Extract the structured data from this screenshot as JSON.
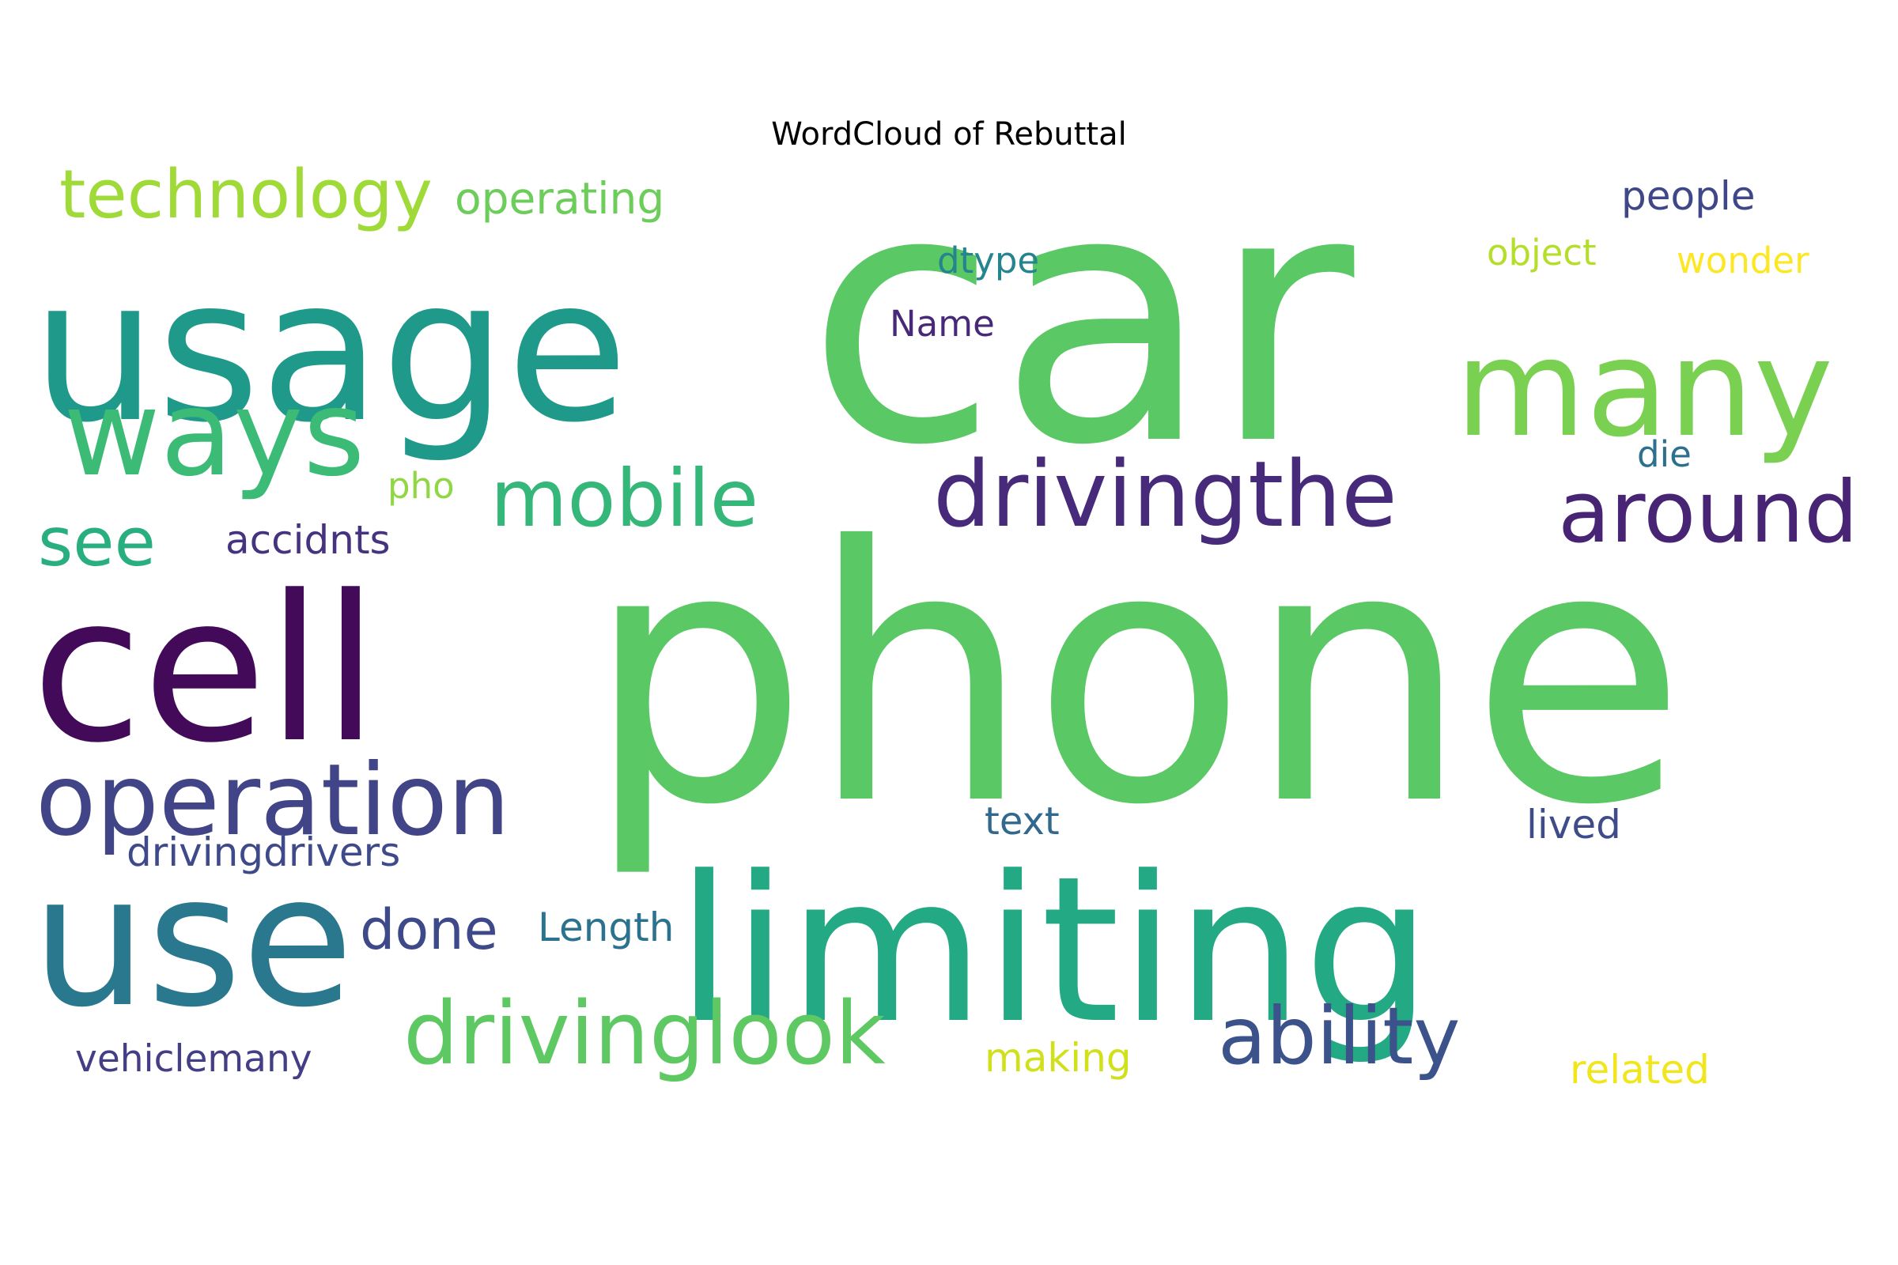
{
  "chart_data": {
    "type": "wordcloud",
    "title": "WordCloud of Rebuttal",
    "colormap": "viridis",
    "background": "#ffffff",
    "words": [
      {
        "text": "car",
        "color": "#5ac864"
      },
      {
        "text": "phone",
        "color": "#5ac864"
      },
      {
        "text": "usage",
        "color": "#1f9a8a"
      },
      {
        "text": "limiting",
        "color": "#23a983"
      },
      {
        "text": "cell",
        "color": "#440a5a"
      },
      {
        "text": "many",
        "color": "#7ad151"
      },
      {
        "text": "use",
        "color": "#2a788e"
      },
      {
        "text": "ways",
        "color": "#3bbb75"
      },
      {
        "text": "operation",
        "color": "#414487"
      },
      {
        "text": "drivingthe",
        "color": "#472a7a"
      },
      {
        "text": "driving look",
        "color": "#5ec962"
      },
      {
        "text": "ability",
        "color": "#3b528b"
      },
      {
        "text": "around",
        "color": "#482475"
      },
      {
        "text": "mobile",
        "color": "#35b779"
      },
      {
        "text": "technology",
        "color": "#a0da39"
      },
      {
        "text": "see",
        "color": "#29af7f"
      },
      {
        "text": "done",
        "color": "#3e4989"
      },
      {
        "text": "operating",
        "color": "#6ccd5a"
      },
      {
        "text": "accidnts",
        "color": "#46337f"
      },
      {
        "text": "drivingdrivers",
        "color": "#3e4a89"
      },
      {
        "text": "Length",
        "color": "#2c728e"
      },
      {
        "text": "vehiclemany",
        "color": "#433e85"
      },
      {
        "text": "text",
        "color": "#31688e"
      },
      {
        "text": "lived",
        "color": "#3e4c8a"
      },
      {
        "text": "making",
        "color": "#d0e11c"
      },
      {
        "text": "related",
        "color": "#f1e51d"
      },
      {
        "text": "dtype",
        "color": "#25848e"
      },
      {
        "text": "Name",
        "color": "#482878"
      },
      {
        "text": "pho",
        "color": "#8fd744"
      },
      {
        "text": "object",
        "color": "#b5de2b"
      },
      {
        "text": "wonder",
        "color": "#fde725"
      },
      {
        "text": "people",
        "color": "#3f4788"
      },
      {
        "text": "die",
        "color": "#2d708e"
      }
    ]
  }
}
